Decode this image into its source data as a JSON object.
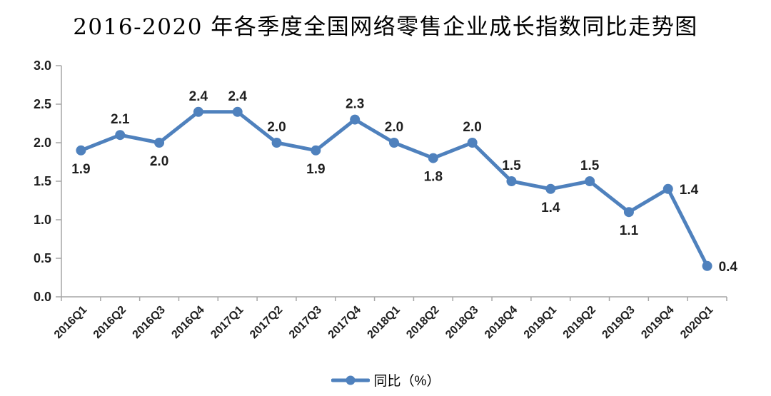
{
  "chart": {
    "title": "2016-2020 年各季度全国网络零售企业成长指数同比走势图"
  },
  "legend": {
    "label": "同比（%）"
  },
  "chart_data": {
    "type": "line",
    "title": "2016-2020 年各季度全国网络零售企业成长指数同比走势图",
    "categories": [
      "2016Q1",
      "2016Q2",
      "2016Q3",
      "2016Q4",
      "2017Q1",
      "2017Q2",
      "2017Q3",
      "2017Q4",
      "2018Q1",
      "2018Q2",
      "2018Q3",
      "2018Q4",
      "2019Q1",
      "2019Q2",
      "2019Q3",
      "2019Q4",
      "2020Q1"
    ],
    "series": [
      {
        "name": "同比（%）",
        "color": "#4F81BD",
        "values": [
          1.9,
          2.1,
          2.0,
          2.4,
          2.4,
          2.0,
          1.9,
          2.3,
          2.0,
          1.8,
          2.0,
          1.5,
          1.4,
          1.5,
          1.1,
          1.4,
          0.4
        ]
      }
    ],
    "xlabel": "",
    "ylabel": "",
    "ylim": [
      0,
      3.0
    ],
    "ytick_step": 0.5,
    "ytick_labels": [
      "0.0",
      "0.5",
      "1.0",
      "1.5",
      "2.0",
      "2.5",
      "3.0"
    ],
    "grid": false,
    "marker": "circle",
    "data_labels": true,
    "label_positions": [
      "below",
      "above",
      "below",
      "above",
      "above",
      "above",
      "below",
      "above",
      "above",
      "below",
      "above",
      "above",
      "below",
      "above",
      "below",
      "right",
      "right"
    ],
    "legend_position": "bottom",
    "colors": {
      "axis": "#A6A6A6",
      "label_text": "#1F1F1F"
    }
  }
}
